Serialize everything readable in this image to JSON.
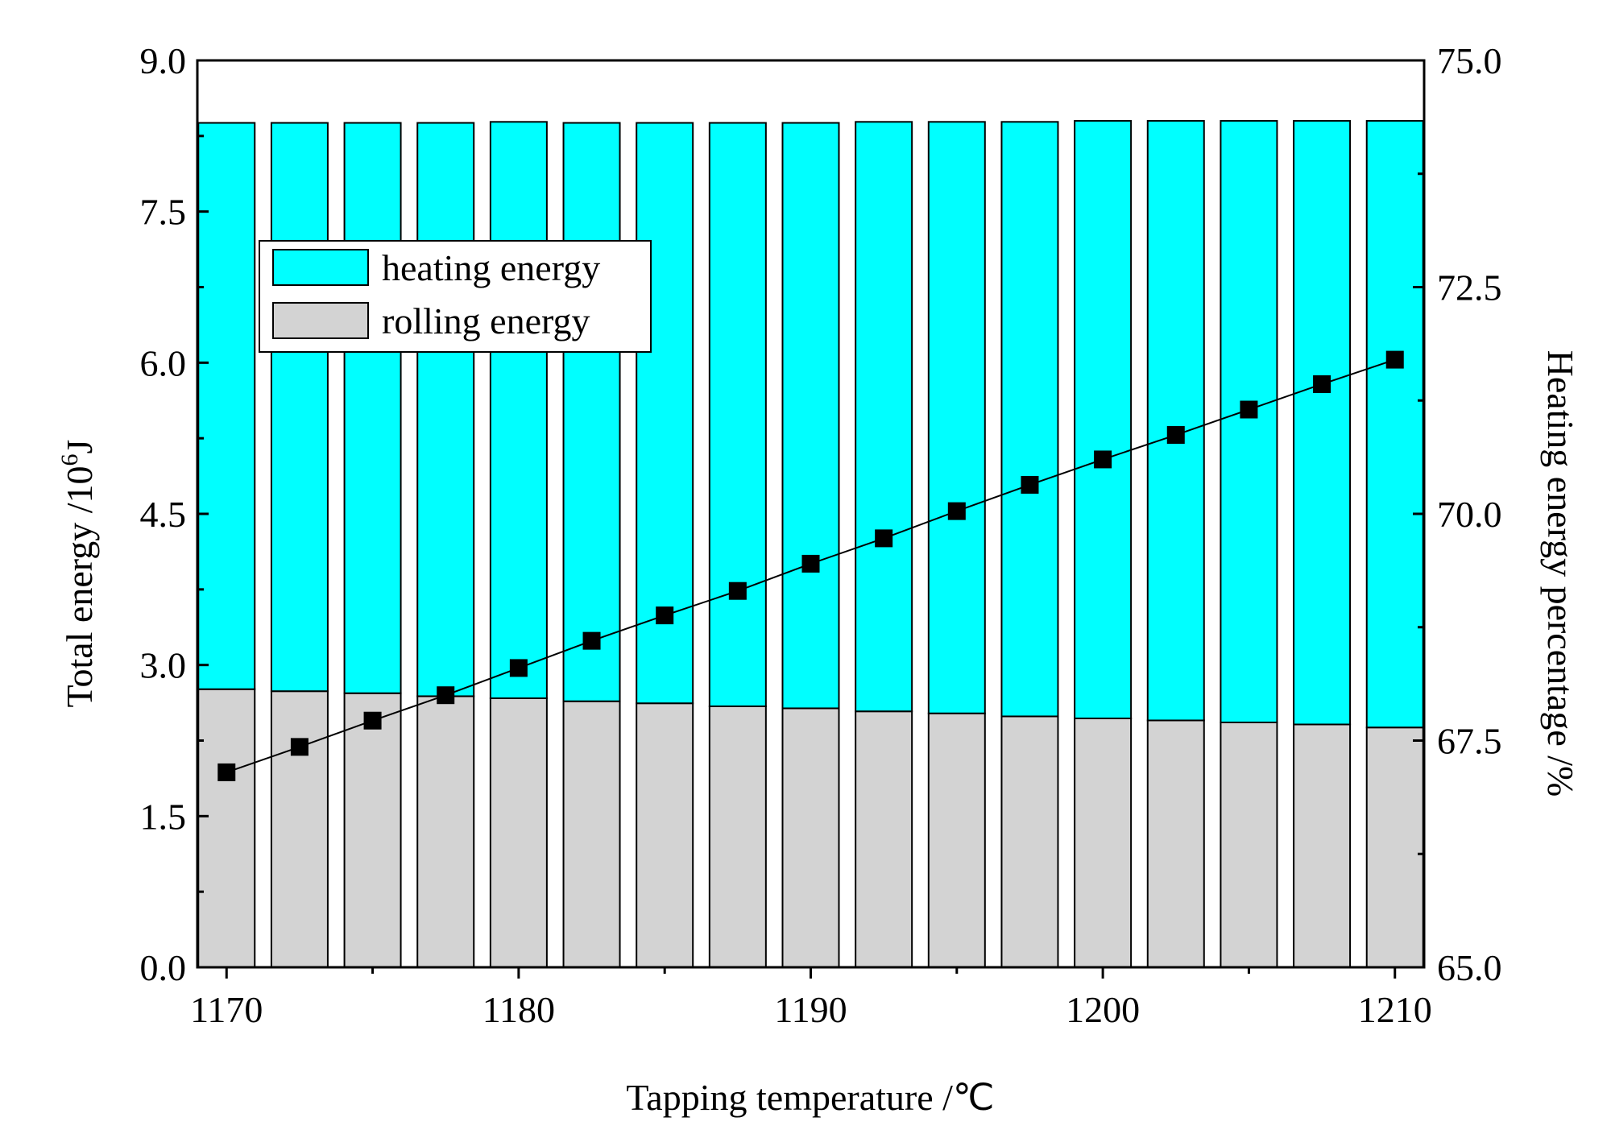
{
  "chart_data": {
    "type": "bar",
    "stacked": true,
    "x": [
      1170,
      1172.5,
      1175,
      1177.5,
      1180,
      1182.5,
      1185,
      1187.5,
      1190,
      1192.5,
      1195,
      1197.5,
      1200,
      1202.5,
      1205,
      1207.5,
      1210
    ],
    "series": [
      {
        "name": "rolling energy",
        "axis": "left",
        "color": "#d3d3d3",
        "values": [
          2.76,
          2.74,
          2.72,
          2.69,
          2.67,
          2.64,
          2.62,
          2.59,
          2.57,
          2.54,
          2.52,
          2.49,
          2.47,
          2.45,
          2.43,
          2.41,
          2.38
        ]
      },
      {
        "name": "heating energy",
        "axis": "left",
        "color": "#00ffff",
        "values": [
          5.62,
          5.64,
          5.66,
          5.69,
          5.72,
          5.74,
          5.76,
          5.79,
          5.81,
          5.85,
          5.87,
          5.9,
          5.93,
          5.95,
          5.97,
          5.99,
          6.02
        ]
      },
      {
        "name": "heating energy percentage",
        "type": "line",
        "axis": "right",
        "marker": "square",
        "color": "#000000",
        "values": [
          67.15,
          67.43,
          67.72,
          68.0,
          68.3,
          68.6,
          68.88,
          69.15,
          69.45,
          69.73,
          70.03,
          70.32,
          70.6,
          70.87,
          71.15,
          71.43,
          71.7
        ]
      }
    ],
    "xlabel": "Tapping temperature /℃",
    "ylabel": "Total energy  /10",
    "ylabel_exponent": "6",
    "ylabel_unit": "J",
    "y2label": "Heating energy percentage /%",
    "xlim": [
      1169,
      1211
    ],
    "xticks": [
      "1170",
      "1180",
      "1190",
      "1200",
      "1210"
    ],
    "ylim": [
      0,
      9
    ],
    "yticks": [
      "0.0",
      "1.5",
      "3.0",
      "4.5",
      "6.0",
      "7.5",
      "9.0"
    ],
    "y2lim": [
      65,
      75
    ],
    "y2ticks": [
      "65.0",
      "67.5",
      "70.0",
      "72.5",
      "75.0"
    ],
    "legend": [
      {
        "label": "heating energy",
        "color": "#00ffff"
      },
      {
        "label": "rolling energy",
        "color": "#d3d3d3"
      }
    ],
    "legend_position": "upper-left"
  }
}
